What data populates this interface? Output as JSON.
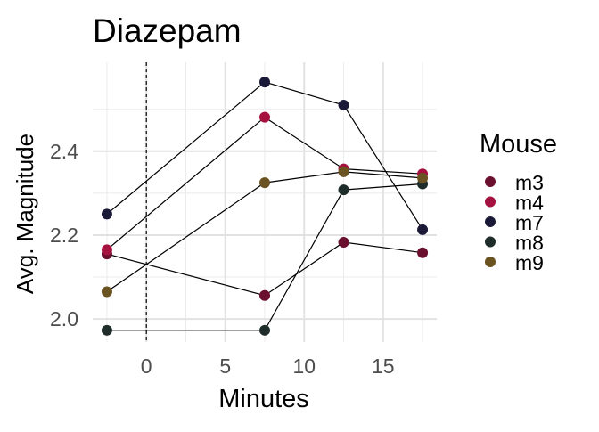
{
  "chart_data": {
    "type": "line",
    "title": "Diazepam",
    "xlabel": "Minutes",
    "ylabel": "Avg. Magnitude",
    "xlim": [
      -3.4,
      18.4
    ],
    "ylim": [
      1.945,
      2.612
    ],
    "x_ticks": [
      0,
      5,
      10,
      15
    ],
    "x_tick_labels": [
      "0",
      "5",
      "10",
      "15"
    ],
    "x_minor_ticks": [
      -2.5,
      2.5,
      7.5,
      12.5,
      17.5
    ],
    "y_ticks": [
      2.0,
      2.2,
      2.4
    ],
    "y_tick_labels": [
      "2.0",
      "2.2",
      "2.4"
    ],
    "y_minor_ticks": [
      2.1,
      2.3,
      2.5
    ],
    "grid": true,
    "vline": {
      "x": 0,
      "style": "dashed",
      "color": "#000000"
    },
    "legend": {
      "title": "Mouse",
      "position": "right"
    },
    "x": [
      -2.5,
      7.5,
      12.5,
      17.5
    ],
    "series": [
      {
        "name": "m3",
        "color": "#6B0F2E",
        "values": [
          2.155,
          2.056,
          2.183,
          2.158
        ]
      },
      {
        "name": "m4",
        "color": "#A5123F",
        "values": [
          2.165,
          2.481,
          2.358,
          2.346
        ]
      },
      {
        "name": "m7",
        "color": "#1A1A38",
        "values": [
          2.25,
          2.565,
          2.51,
          2.213
        ]
      },
      {
        "name": "m8",
        "color": "#1E2D2A",
        "values": [
          1.973,
          1.973,
          2.308,
          2.322
        ]
      },
      {
        "name": "m9",
        "color": "#6B5221",
        "values": [
          2.065,
          2.325,
          2.351,
          2.336
        ]
      }
    ]
  }
}
